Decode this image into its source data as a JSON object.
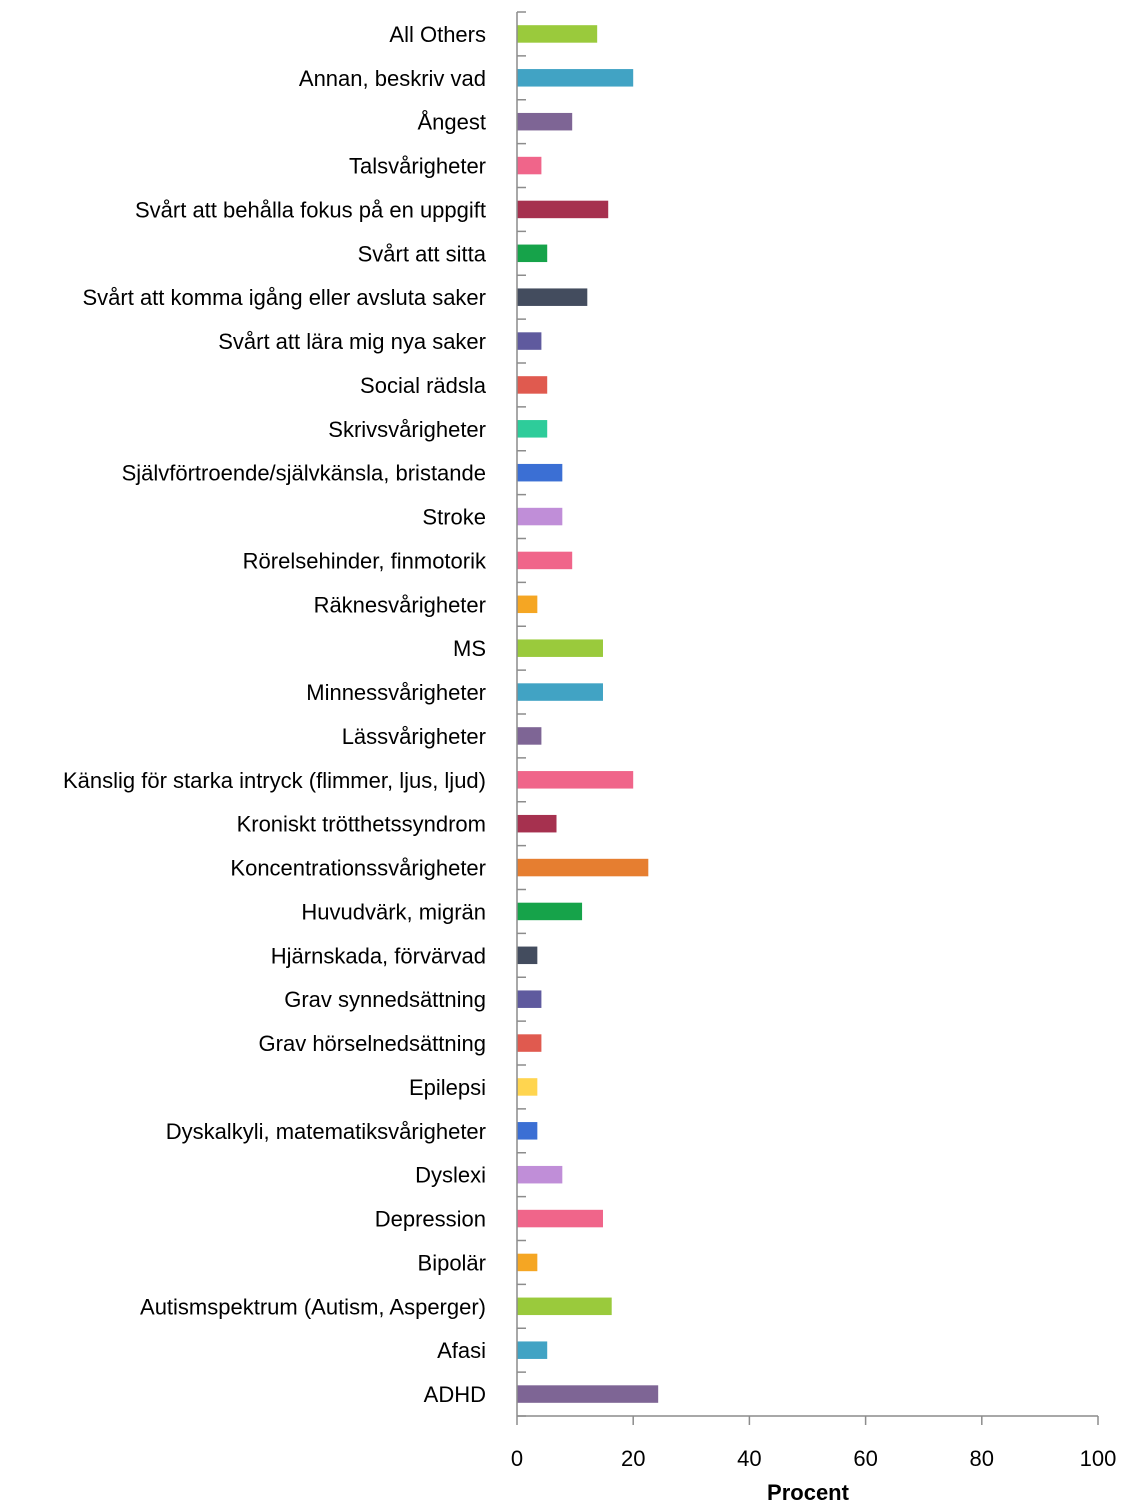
{
  "chart_data": {
    "type": "bar",
    "orientation": "horizontal",
    "categories": [
      "All Others",
      "Annan, beskriv vad",
      "Ångest",
      "Talsvårigheter",
      "Svårt att behålla fokus på en uppgift",
      "Svårt att sitta",
      "Svårt att komma igång eller avsluta saker",
      "Svårt att lära mig nya saker",
      "Social rädsla",
      "Skrivsvårigheter",
      "Självförtroende/självkänsla, bristande",
      "Stroke",
      "Rörelsehinder, finmotorik",
      "Räknesvårigheter",
      "MS",
      "Minnessvårigheter",
      "Lässvårigheter",
      "Känslig för starka intryck (flimmer, ljus, ljud)",
      "Kroniskt trötthetssyndrom",
      "Koncentrationssvårigheter",
      "Huvudvärk, migrän",
      "Hjärnskada, förvärvad",
      "Grav synnedsättning",
      "Grav hörselnedsättning",
      "Epilepsi",
      "Dyskalkyli, matematiksvårigheter",
      "Dyslexi",
      "Depression",
      "Bipolär",
      "Autismspektrum (Autism, Asperger)",
      "Afasi",
      "ADHD"
    ],
    "values": [
      13.8,
      20.0,
      9.5,
      4.2,
      15.7,
      5.2,
      12.1,
      4.2,
      5.2,
      5.2,
      7.8,
      7.8,
      9.5,
      3.5,
      14.8,
      14.8,
      4.2,
      20.0,
      6.8,
      22.6,
      11.2,
      3.5,
      4.2,
      4.2,
      3.5,
      3.5,
      7.8,
      14.8,
      3.5,
      16.3,
      5.2,
      24.3
    ],
    "colors": [
      "#9ACA3C",
      "#41A3C4",
      "#7E6595",
      "#F0658A",
      "#A6314F",
      "#16A34A",
      "#434C5E",
      "#5F5A9E",
      "#E05A4F",
      "#2ECC9A",
      "#3B6FD4",
      "#C08ED8",
      "#F0658A",
      "#F5A623",
      "#9ACA3C",
      "#41A3C4",
      "#7E6595",
      "#F0658A",
      "#A6314F",
      "#E67E30",
      "#16A34A",
      "#434C5E",
      "#5F5A9E",
      "#E05A4F",
      "#FFD54F",
      "#3B6FD4",
      "#C08ED8",
      "#F0658A",
      "#F5A623",
      "#9ACA3C",
      "#41A3C4",
      "#7E6595"
    ],
    "xlabel": "Procent",
    "ylabel": "",
    "xlim": [
      0,
      100
    ],
    "xticks": [
      "0",
      "20",
      "40",
      "60",
      "80",
      "100"
    ],
    "grid": false,
    "legend": "none"
  }
}
